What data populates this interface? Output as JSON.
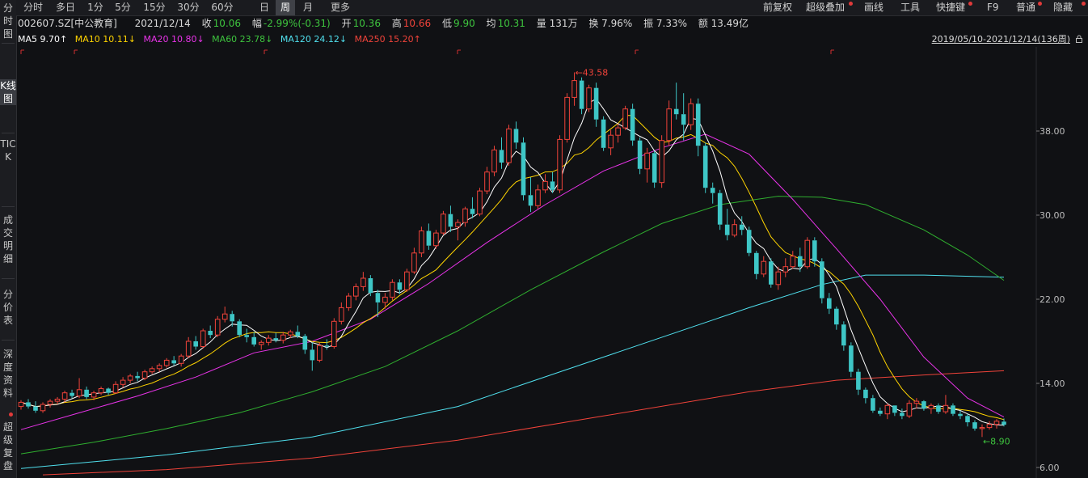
{
  "sidebar": [
    {
      "label": "分时图",
      "active": false
    },
    {
      "label": "K线图",
      "active": true
    },
    {
      "label": "TICK",
      "active": false
    },
    {
      "label": "成交明细",
      "active": false
    },
    {
      "label": "分价表",
      "active": false
    },
    {
      "label": "深度资料",
      "active": false
    },
    {
      "label": "超级复盘",
      "active": false
    }
  ],
  "timeframes": [
    "分时",
    "多日",
    "1分",
    "5分",
    "15分",
    "30分",
    "60分",
    "日",
    "周",
    "月",
    "更多"
  ],
  "active_timeframe": "周",
  "toolbar_right": [
    "前复权",
    "超级叠加",
    "画线",
    "工具",
    "快捷键",
    "F9",
    "普通",
    "隐藏"
  ],
  "info": {
    "code": "002607.SZ[中公教育]",
    "date": "2021/12/14",
    "close_label": "收",
    "close": "10.06",
    "change_label": "幅",
    "change": "-2.99%(-0.31)",
    "open_label": "开",
    "open": "10.36",
    "high_label": "高",
    "high": "10.66",
    "low_label": "低",
    "low": "9.90",
    "avg_label": "均",
    "avg": "10.31",
    "volume": "量 131万",
    "turnover": "换 7.96%",
    "amplitude": "振 7.33%",
    "amount": "额 13.49亿"
  },
  "ma": {
    "ma5": "MA5 9.70↑",
    "ma10": "MA10 10.11↓",
    "ma20": "MA20 10.80↓",
    "ma60": "MA60 23.78↓",
    "ma120": "MA120 24.12↓",
    "ma250": "MA250 15.20↑"
  },
  "date_range": "2019/05/10-2021/12/14(136周)",
  "price_max_label": "←43.58",
  "price_min_label": "←8.90",
  "colors": {
    "up": "#f0433a",
    "down": "#3ec6c6",
    "ma5": "#ffffff",
    "ma10": "#ffd400",
    "ma20": "#e833e8",
    "ma60": "#2fae2f",
    "ma120": "#50e0ee",
    "ma250": "#f0433a"
  },
  "chart_data": {
    "type": "candlestick",
    "y_axis": {
      "ticks": [
        6.0,
        14.0,
        22.0,
        30.0,
        38.0
      ],
      "range": [
        5.0,
        46.0
      ]
    },
    "period": "weekly",
    "count": 136,
    "candles_ohlc": [
      [
        11.8,
        12.4,
        11.5,
        12.2
      ],
      [
        12.2,
        12.5,
        11.6,
        11.8
      ],
      [
        11.8,
        12.3,
        11.2,
        11.4
      ],
      [
        11.4,
        12.2,
        11.2,
        12.0
      ],
      [
        12.0,
        12.5,
        11.7,
        12.3
      ],
      [
        12.3,
        12.7,
        12.0,
        12.5
      ],
      [
        12.5,
        13.3,
        12.2,
        13.1
      ],
      [
        13.1,
        13.4,
        12.6,
        12.8
      ],
      [
        12.8,
        14.5,
        12.6,
        13.4
      ],
      [
        13.4,
        13.7,
        12.5,
        12.7
      ],
      [
        12.7,
        13.3,
        12.4,
        13.1
      ],
      [
        13.1,
        13.7,
        12.9,
        13.5
      ],
      [
        13.5,
        13.6,
        12.9,
        13.1
      ],
      [
        13.1,
        14.2,
        13.0,
        13.9
      ],
      [
        13.9,
        14.6,
        13.6,
        14.3
      ],
      [
        14.3,
        14.9,
        14.0,
        14.7
      ],
      [
        14.7,
        15.1,
        14.2,
        14.5
      ],
      [
        14.5,
        15.3,
        14.3,
        15.1
      ],
      [
        15.1,
        15.6,
        14.9,
        15.4
      ],
      [
        15.4,
        15.9,
        15.1,
        15.7
      ],
      [
        15.7,
        16.4,
        15.5,
        16.2
      ],
      [
        16.2,
        16.6,
        15.7,
        15.9
      ],
      [
        15.9,
        16.8,
        15.6,
        16.6
      ],
      [
        16.6,
        18.4,
        16.4,
        18.0
      ],
      [
        18.0,
        18.5,
        17.2,
        17.5
      ],
      [
        17.5,
        19.2,
        17.3,
        19.0
      ],
      [
        19.0,
        19.5,
        18.3,
        18.6
      ],
      [
        18.6,
        20.4,
        18.4,
        20.1
      ],
      [
        20.1,
        21.3,
        19.8,
        20.6
      ],
      [
        20.6,
        20.9,
        19.4,
        19.9
      ],
      [
        19.9,
        20.1,
        18.4,
        18.6
      ],
      [
        18.6,
        19.2,
        17.9,
        18.4
      ],
      [
        18.4,
        18.9,
        17.5,
        17.7
      ],
      [
        17.7,
        18.1,
        17.2,
        17.9
      ],
      [
        17.9,
        18.6,
        17.6,
        18.3
      ],
      [
        18.3,
        18.8,
        17.9,
        18.1
      ],
      [
        18.1,
        18.9,
        17.8,
        18.6
      ],
      [
        18.6,
        19.1,
        18.3,
        18.9
      ],
      [
        18.9,
        19.5,
        18.3,
        18.5
      ],
      [
        18.5,
        18.7,
        16.8,
        17.2
      ],
      [
        17.2,
        17.9,
        15.2,
        16.2
      ],
      [
        16.2,
        17.9,
        16.0,
        17.6
      ],
      [
        17.6,
        18.2,
        17.2,
        17.5
      ],
      [
        17.5,
        20.2,
        17.3,
        19.9
      ],
      [
        19.9,
        21.7,
        19.6,
        21.2
      ],
      [
        21.2,
        22.6,
        20.9,
        22.3
      ],
      [
        22.3,
        23.5,
        21.9,
        23.2
      ],
      [
        23.2,
        24.6,
        22.8,
        24.0
      ],
      [
        24.0,
        24.3,
        22.3,
        22.6
      ],
      [
        22.6,
        22.9,
        20.3,
        21.7
      ],
      [
        21.7,
        22.6,
        21.1,
        22.2
      ],
      [
        22.2,
        23.9,
        21.9,
        23.6
      ],
      [
        23.6,
        23.9,
        22.5,
        22.9
      ],
      [
        22.9,
        24.9,
        22.7,
        24.6
      ],
      [
        24.6,
        26.9,
        24.4,
        26.4
      ],
      [
        26.4,
        28.9,
        26.0,
        28.5
      ],
      [
        28.5,
        29.2,
        26.7,
        27.1
      ],
      [
        27.1,
        28.6,
        26.8,
        28.3
      ],
      [
        28.3,
        30.4,
        28.1,
        30.1
      ],
      [
        30.1,
        30.9,
        28.4,
        28.9
      ],
      [
        28.9,
        29.6,
        27.6,
        29.3
      ],
      [
        29.3,
        30.8,
        28.9,
        30.6
      ],
      [
        30.6,
        31.7,
        29.7,
        30.1
      ],
      [
        30.1,
        32.6,
        29.9,
        32.3
      ],
      [
        32.3,
        34.6,
        32.0,
        34.1
      ],
      [
        34.1,
        36.6,
        33.7,
        36.2
      ],
      [
        36.2,
        37.4,
        34.4,
        35.0
      ],
      [
        35.0,
        38.6,
        34.7,
        38.2
      ],
      [
        38.2,
        38.9,
        36.3,
        36.9
      ],
      [
        36.9,
        37.4,
        31.4,
        31.9
      ],
      [
        31.9,
        33.6,
        30.3,
        30.9
      ],
      [
        30.9,
        32.9,
        30.6,
        32.4
      ],
      [
        32.4,
        33.9,
        32.1,
        33.2
      ],
      [
        33.2,
        34.1,
        32.1,
        32.4
      ],
      [
        32.4,
        37.6,
        32.1,
        37.2
      ],
      [
        37.2,
        41.6,
        36.9,
        41.2
      ],
      [
        41.2,
        43.58,
        40.4,
        42.8
      ],
      [
        42.8,
        43.1,
        39.6,
        40.1
      ],
      [
        40.1,
        42.4,
        39.8,
        42.1
      ],
      [
        42.1,
        42.6,
        38.4,
        39.1
      ],
      [
        39.1,
        39.4,
        36.1,
        36.4
      ],
      [
        36.4,
        38.1,
        35.7,
        37.6
      ],
      [
        37.6,
        38.7,
        36.9,
        38.3
      ],
      [
        38.3,
        40.4,
        38.1,
        40.1
      ],
      [
        40.1,
        40.6,
        36.6,
        37.1
      ],
      [
        37.1,
        37.4,
        33.9,
        34.4
      ],
      [
        34.4,
        36.4,
        33.1,
        35.9
      ],
      [
        35.9,
        36.1,
        32.6,
        33.1
      ],
      [
        33.1,
        37.6,
        32.6,
        37.1
      ],
      [
        37.1,
        40.9,
        36.6,
        40.1
      ],
      [
        40.1,
        42.6,
        39.1,
        39.6
      ],
      [
        39.6,
        41.6,
        37.1,
        38.6
      ],
      [
        38.6,
        41.1,
        38.1,
        40.6
      ],
      [
        40.6,
        41.1,
        35.6,
        36.6
      ],
      [
        36.6,
        36.9,
        32.1,
        32.6
      ],
      [
        32.6,
        33.1,
        31.1,
        32.1
      ],
      [
        32.1,
        32.4,
        28.6,
        29.1
      ],
      [
        29.1,
        30.6,
        27.6,
        28.1
      ],
      [
        28.1,
        29.6,
        27.9,
        29.1
      ],
      [
        29.1,
        29.9,
        28.1,
        28.6
      ],
      [
        28.6,
        28.9,
        26.1,
        26.4
      ],
      [
        26.4,
        26.6,
        23.9,
        24.4
      ],
      [
        24.4,
        26.1,
        24.1,
        25.6
      ],
      [
        25.6,
        25.9,
        23.1,
        23.4
      ],
      [
        23.4,
        25.1,
        22.9,
        24.6
      ],
      [
        24.6,
        25.9,
        24.1,
        25.1
      ],
      [
        25.1,
        26.6,
        24.9,
        26.1
      ],
      [
        26.1,
        26.9,
        24.6,
        25.1
      ],
      [
        25.1,
        27.9,
        24.9,
        27.6
      ],
      [
        27.6,
        27.9,
        25.1,
        25.6
      ],
      [
        25.6,
        25.9,
        21.6,
        22.1
      ],
      [
        22.1,
        22.6,
        20.6,
        21.1
      ],
      [
        21.1,
        21.3,
        19.1,
        19.6
      ],
      [
        19.6,
        19.9,
        17.1,
        17.6
      ],
      [
        17.6,
        17.9,
        14.6,
        15.1
      ],
      [
        15.1,
        15.4,
        12.9,
        13.4
      ],
      [
        13.4,
        13.6,
        12.1,
        12.6
      ],
      [
        12.6,
        12.9,
        11.2,
        11.4
      ],
      [
        11.4,
        11.7,
        10.9,
        11.1
      ],
      [
        11.1,
        12.1,
        10.6,
        11.9
      ],
      [
        11.9,
        11.9,
        10.9,
        11.2
      ],
      [
        11.2,
        11.6,
        10.6,
        10.9
      ],
      [
        10.9,
        12.4,
        10.7,
        12.1
      ],
      [
        12.1,
        12.6,
        11.6,
        12.3
      ],
      [
        12.3,
        12.4,
        11.4,
        11.6
      ],
      [
        11.6,
        12.1,
        11.1,
        11.9
      ],
      [
        11.9,
        12.1,
        11.1,
        11.3
      ],
      [
        11.3,
        12.9,
        11.1,
        11.9
      ],
      [
        11.9,
        12.1,
        10.9,
        11.1
      ],
      [
        11.1,
        11.4,
        10.6,
        10.9
      ],
      [
        10.9,
        11.1,
        9.9,
        10.3
      ],
      [
        10.3,
        10.5,
        9.5,
        9.7
      ],
      [
        9.7,
        10.1,
        8.9,
        9.8
      ],
      [
        9.8,
        10.4,
        9.6,
        10.1
      ],
      [
        10.1,
        10.6,
        9.7,
        10.4
      ],
      [
        10.36,
        10.66,
        9.9,
        10.06
      ]
    ],
    "ma_lines": {
      "MA20": [
        [
          0,
          9.6
        ],
        [
          8,
          11.2
        ],
        [
          16,
          12.8
        ],
        [
          24,
          14.6
        ],
        [
          32,
          16.9
        ],
        [
          40,
          18.0
        ],
        [
          48,
          20.1
        ],
        [
          56,
          23.5
        ],
        [
          64,
          27.4
        ],
        [
          72,
          31.0
        ],
        [
          80,
          34.2
        ],
        [
          88,
          36.4
        ],
        [
          94,
          37.7
        ],
        [
          100,
          35.8
        ],
        [
          106,
          31.5
        ],
        [
          112,
          26.8
        ],
        [
          118,
          22.0
        ],
        [
          124,
          16.5
        ],
        [
          130,
          12.6
        ],
        [
          135,
          10.8
        ]
      ],
      "MA60": [
        [
          0,
          7.3
        ],
        [
          10,
          8.4
        ],
        [
          20,
          9.7
        ],
        [
          30,
          11.2
        ],
        [
          40,
          13.2
        ],
        [
          50,
          15.6
        ],
        [
          60,
          19.0
        ],
        [
          70,
          22.9
        ],
        [
          80,
          26.5
        ],
        [
          88,
          29.2
        ],
        [
          96,
          31.0
        ],
        [
          104,
          31.8
        ],
        [
          110,
          31.7
        ],
        [
          116,
          31.0
        ],
        [
          124,
          28.6
        ],
        [
          130,
          26.2
        ],
        [
          135,
          23.8
        ]
      ],
      "MA120": [
        [
          0,
          5.9
        ],
        [
          20,
          7.2
        ],
        [
          40,
          8.9
        ],
        [
          60,
          11.8
        ],
        [
          80,
          16.5
        ],
        [
          100,
          21.2
        ],
        [
          110,
          23.4
        ],
        [
          116,
          24.3
        ],
        [
          124,
          24.3
        ],
        [
          135,
          24.1
        ]
      ],
      "MA250": [
        [
          3,
          5.3
        ],
        [
          20,
          5.8
        ],
        [
          40,
          6.9
        ],
        [
          60,
          8.6
        ],
        [
          80,
          10.9
        ],
        [
          100,
          13.2
        ],
        [
          112,
          14.3
        ],
        [
          124,
          14.8
        ],
        [
          135,
          15.2
        ]
      ]
    }
  }
}
